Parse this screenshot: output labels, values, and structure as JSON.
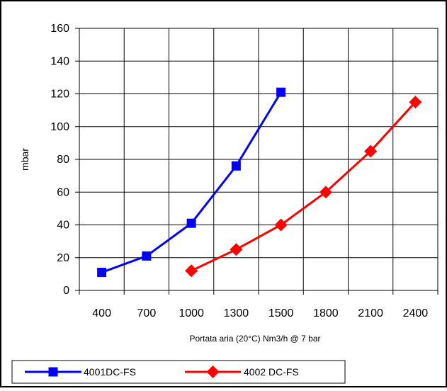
{
  "chart_data": {
    "type": "line",
    "title": "",
    "xlabel": "Portata aria (20°C) Nm3/h @ 7 bar",
    "ylabel": "mbar",
    "categories": [
      "400",
      "700",
      "1000",
      "1300",
      "1500",
      "1800",
      "2100",
      "2400"
    ],
    "x_values": [
      400,
      700,
      1000,
      1300,
      1500,
      1800,
      2100,
      2400
    ],
    "yticks": [
      0,
      20,
      40,
      60,
      80,
      100,
      120,
      140,
      160
    ],
    "ylim": [
      0,
      160
    ],
    "grid": true,
    "legend_position": "bottom",
    "series": [
      {
        "name": "4001DC-FS",
        "color": "#0000ff",
        "marker": "square",
        "points": [
          {
            "x": 400,
            "y": 11
          },
          {
            "x": 700,
            "y": 21
          },
          {
            "x": 1000,
            "y": 41
          },
          {
            "x": 1300,
            "y": 76
          },
          {
            "x": 1500,
            "y": 121
          }
        ]
      },
      {
        "name": "4002 DC-FS",
        "color": "#ff0000",
        "marker": "diamond",
        "points": [
          {
            "x": 1000,
            "y": 12
          },
          {
            "x": 1300,
            "y": 25
          },
          {
            "x": 1500,
            "y": 40
          },
          {
            "x": 1800,
            "y": 60
          },
          {
            "x": 2100,
            "y": 85
          },
          {
            "x": 2400,
            "y": 115
          }
        ]
      }
    ]
  }
}
